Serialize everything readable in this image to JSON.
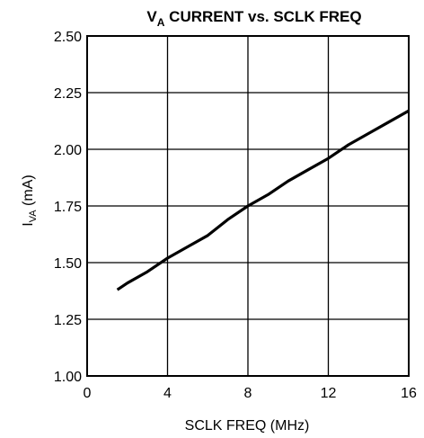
{
  "chart_data": {
    "type": "line",
    "title": {
      "main": "V",
      "sub": "A",
      "rest": " CURRENT vs. SCLK FREQ"
    },
    "xlabel": "SCLK FREQ (MHz)",
    "ylabel": {
      "main": "I",
      "sub": "VA",
      "rest": " (mA)"
    },
    "xlim": [
      0,
      16
    ],
    "ylim": [
      1.0,
      2.5
    ],
    "x_ticks": [
      0,
      4,
      8,
      12,
      16
    ],
    "x_tick_labels": [
      "0",
      "4",
      "8",
      "12",
      "16"
    ],
    "y_ticks": [
      1.0,
      1.25,
      1.5,
      1.75,
      2.0,
      2.25,
      2.5
    ],
    "y_tick_labels": [
      "1.00",
      "1.25",
      "1.50",
      "1.75",
      "2.00",
      "2.25",
      "2.50"
    ],
    "grid": true,
    "series": [
      {
        "color": "#000000",
        "x": [
          1.5,
          2,
          3,
          4,
          5,
          6,
          7,
          8,
          9,
          10,
          11,
          12,
          13,
          14,
          15,
          16
        ],
        "y": [
          1.38,
          1.41,
          1.46,
          1.52,
          1.57,
          1.62,
          1.69,
          1.75,
          1.8,
          1.86,
          1.91,
          1.96,
          2.02,
          2.07,
          2.12,
          2.17
        ]
      }
    ]
  }
}
